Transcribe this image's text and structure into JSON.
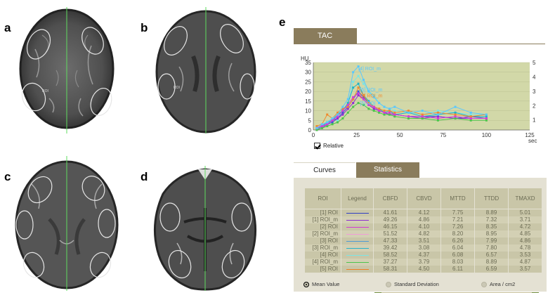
{
  "panels": {
    "a": "a",
    "b": "b",
    "c": "c",
    "d": "d",
    "e": "e"
  },
  "brain_labels": [
    "ROI",
    "ROI"
  ],
  "tac": {
    "tab_label": "TAC",
    "y_unit": "HU",
    "x_unit": "sec",
    "relative_label": "Relative",
    "relative_checked": true,
    "series_labels": [
      "[4] ROI_m",
      "[5] ROI_m",
      "[1] ROI_m",
      "[5] ROI"
    ],
    "line_colors": [
      "#79e6e6",
      "#1fb3c9",
      "#3c54d6",
      "#8f2bd6",
      "#f08a2e",
      "#4cc44c",
      "#d63cd6",
      "#59c8ff"
    ]
  },
  "chart_data": {
    "type": "line",
    "x_ticks": [
      "0",
      "25",
      "50",
      "75",
      "100",
      "125"
    ],
    "y_ticks": [
      "0",
      "5",
      "10",
      "15",
      "20",
      "25",
      "30",
      "35"
    ],
    "y2_ticks": [
      "1",
      "2",
      "3",
      "4",
      "5"
    ],
    "xlabel": "sec",
    "ylabel": "HU",
    "xlim": [
      0,
      125
    ],
    "ylim": [
      0,
      35
    ],
    "y2lim": [
      0.3,
      5
    ],
    "x": [
      2,
      5,
      8,
      11,
      14,
      17,
      20,
      23,
      26,
      29,
      32,
      35,
      38,
      41,
      44,
      47,
      55,
      63,
      72,
      82,
      91,
      100
    ],
    "series": [
      {
        "values": [
          1,
          3,
          2,
          6,
          5,
          11,
          13,
          25,
          28,
          24,
          20,
          18,
          14,
          12,
          11,
          10,
          9,
          8,
          10,
          9,
          8,
          8
        ]
      },
      {
        "values": [
          0,
          2,
          4,
          5,
          8,
          10,
          14,
          22,
          24,
          18,
          15,
          12,
          11,
          9,
          10,
          8,
          9,
          7,
          8,
          9,
          7,
          7
        ]
      },
      {
        "values": [
          1,
          2,
          3,
          4,
          6,
          9,
          12,
          16,
          20,
          17,
          14,
          12,
          10,
          9,
          8,
          8,
          7,
          7,
          7,
          6,
          7,
          6
        ]
      },
      {
        "values": [
          0,
          1,
          3,
          5,
          6,
          8,
          11,
          14,
          18,
          16,
          13,
          11,
          10,
          9,
          8,
          8,
          7,
          6,
          7,
          6,
          6,
          6
        ]
      },
      {
        "values": [
          2,
          3,
          8,
          6,
          9,
          11,
          12,
          16,
          22,
          18,
          14,
          12,
          11,
          10,
          10,
          9,
          10,
          8,
          9,
          8,
          7,
          8
        ]
      },
      {
        "values": [
          0,
          1,
          2,
          3,
          4,
          6,
          9,
          12,
          14,
          13,
          11,
          10,
          9,
          8,
          8,
          7,
          6,
          6,
          5,
          6,
          5,
          5
        ]
      },
      {
        "values": [
          1,
          2,
          3,
          5,
          7,
          10,
          13,
          17,
          19,
          16,
          13,
          12,
          10,
          9,
          9,
          8,
          7,
          7,
          6,
          7,
          6,
          6
        ]
      },
      {
        "values": [
          1,
          3,
          4,
          6,
          8,
          12,
          16,
          30,
          33,
          26,
          20,
          17,
          14,
          12,
          11,
          12,
          9,
          10,
          8,
          12,
          9,
          8
        ]
      }
    ]
  },
  "tabs": {
    "curves": "Curves",
    "statistics": "Statistics"
  },
  "table": {
    "headers": [
      "ROI",
      "Legend",
      "CBFD",
      "CBVD",
      "MTTD",
      "TTDD",
      "TMAXD"
    ],
    "rows": [
      {
        "roi": "[1] ROI",
        "color": "#2f3fc4",
        "cbfd": "41.61",
        "cbvd": "4.12",
        "mttd": "7.75",
        "ttdd": "8.89",
        "tmaxd": "5.01"
      },
      {
        "roi": "[1] ROI_m",
        "color": "#8c2bd0",
        "cbfd": "49.26",
        "cbvd": "4.86",
        "mttd": "7.21",
        "ttdd": "7.32",
        "tmaxd": "3.71"
      },
      {
        "roi": "[2] ROI",
        "color": "#d23cd2",
        "cbfd": "46.15",
        "cbvd": "4.10",
        "mttd": "7.26",
        "ttdd": "8.35",
        "tmaxd": "4.72"
      },
      {
        "roi": "[2] ROI_m",
        "color": "#f29ad8",
        "cbfd": "51.52",
        "cbvd": "4.82",
        "mttd": "8.20",
        "ttdd": "8.95",
        "tmaxd": "4.85"
      },
      {
        "roi": "[3] ROI",
        "color": "#4f9ad6",
        "cbfd": "47.33",
        "cbvd": "3.51",
        "mttd": "6.26",
        "ttdd": "7.99",
        "tmaxd": "4.86"
      },
      {
        "roi": "[3] ROI_m",
        "color": "#2ab3c8",
        "cbfd": "39.42",
        "cbvd": "3.08",
        "mttd": "6.04",
        "ttdd": "7.80",
        "tmaxd": "4.78"
      },
      {
        "roi": "[4] ROI",
        "color": "#7ae6e6",
        "cbfd": "58.52",
        "cbvd": "4.37",
        "mttd": "6.08",
        "ttdd": "6.57",
        "tmaxd": "3.53"
      },
      {
        "roi": "[4] ROI_m",
        "color": "#4cc44c",
        "cbfd": "37.27",
        "cbvd": "3.79",
        "mttd": "8.03",
        "ttdd": "8.89",
        "tmaxd": "4.87"
      },
      {
        "roi": "[5] ROI",
        "color": "#ee7f22",
        "cbfd": "58.31",
        "cbvd": "4.50",
        "mttd": "6.11",
        "ttdd": "6.59",
        "tmaxd": "3.57"
      }
    ]
  },
  "radios": {
    "mean": "Mean Value",
    "std": "Standard Deviation",
    "area": "Area / cm2",
    "selected": "mean"
  }
}
